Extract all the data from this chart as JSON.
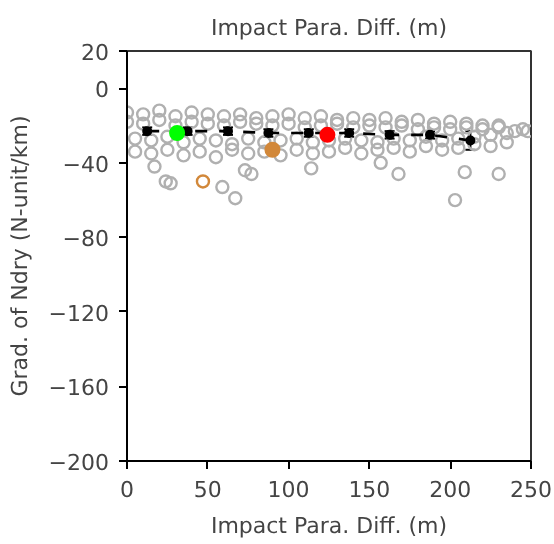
{
  "chart_data": {
    "type": "scatter",
    "title": "Impact Para. Diff. (m)",
    "xlabel": "Impact Para. Diff. (m)",
    "ylabel": "Grad. of Ndry (N-unit/km)",
    "xlim": [
      0,
      250
    ],
    "ylim": [
      -200,
      20
    ],
    "xticks": [
      0,
      50,
      100,
      150,
      200,
      250
    ],
    "yticks": [
      -200,
      -160,
      -120,
      -80,
      -40,
      0,
      20
    ],
    "grid": false,
    "series": [
      {
        "color": "#b0b0b0",
        "marker": "circle_open",
        "x": [
          0,
          10,
          20,
          30,
          40,
          50,
          60,
          70,
          80,
          90,
          100,
          110,
          120,
          130,
          140,
          150,
          160,
          170,
          180,
          190,
          200,
          210,
          220,
          230,
          5,
          15,
          25,
          35,
          45,
          55,
          65,
          75,
          85,
          95,
          105,
          115,
          125,
          135,
          145,
          155,
          165,
          175,
          185,
          195,
          205,
          215,
          225,
          235,
          0,
          10,
          20,
          30,
          40,
          50,
          60,
          70,
          80,
          90,
          100,
          110,
          120,
          130,
          140,
          150,
          160,
          170,
          180,
          190,
          200,
          210,
          220,
          230,
          5,
          15,
          25,
          35,
          45,
          55,
          65,
          75,
          85,
          95,
          105,
          115,
          125,
          135,
          145,
          155,
          165,
          175,
          185,
          195,
          205,
          215,
          225,
          235,
          240,
          245,
          248,
          24,
          59,
          67,
          73,
          77,
          114,
          168,
          203,
          209,
          230,
          17,
          27,
          157
        ],
        "values": [
          -13,
          -14,
          -12,
          -15,
          -13,
          -14,
          -15,
          -14,
          -16,
          -15,
          -14,
          -16,
          -15,
          -17,
          -16,
          -17,
          -16,
          -18,
          -17,
          -19,
          -18,
          -19,
          -20,
          -20,
          -34,
          -35,
          -33,
          -36,
          -34,
          -37,
          -33,
          -35,
          -34,
          -36,
          -33,
          -35,
          -34,
          -32,
          -35,
          -33,
          -32,
          -34,
          -31,
          -33,
          -32,
          -30,
          -31,
          -29,
          -18,
          -19,
          -17,
          -20,
          -18,
          -19,
          -20,
          -18,
          -19,
          -20,
          -19,
          -21,
          -20,
          -19,
          -21,
          -20,
          -21,
          -20,
          -22,
          -21,
          -22,
          -21,
          -22,
          -21,
          -27,
          -28,
          -26,
          -29,
          -27,
          -28,
          -30,
          -27,
          -29,
          -28,
          -27,
          -29,
          -28,
          -27,
          -28,
          -29,
          -27,
          -28,
          -26,
          -28,
          -27,
          -26,
          -25,
          -24,
          -23,
          -22,
          -23,
          -50,
          -53,
          -59,
          -44,
          -46,
          -43,
          -46,
          -60,
          -45,
          -46,
          -42,
          -51,
          -40
        ]
      },
      {
        "color": "#000000",
        "type": "line",
        "line_style": "dashed",
        "marker": "circle",
        "x": [
          12.5,
          37.5,
          62.5,
          87.5,
          112.5,
          137.5,
          162.5,
          187.5,
          212.5
        ],
        "values": [
          -23,
          -23,
          -23,
          -24,
          -24,
          -24,
          -25,
          -25,
          -28
        ],
        "errors": [
          2,
          2,
          2,
          2,
          2,
          2,
          2,
          2,
          5
        ]
      },
      {
        "color": "#00ff00",
        "marker": "circle",
        "x": [
          31
        ],
        "values": [
          -24
        ]
      },
      {
        "color": "#ff0000",
        "marker": "circle",
        "x": [
          124
        ],
        "values": [
          -25
        ]
      },
      {
        "color": "#d2883a",
        "marker": "circle",
        "x": [
          90
        ],
        "values": [
          -33
        ]
      },
      {
        "color": "#d2883a",
        "marker": "circle_open",
        "x": [
          47
        ],
        "values": [
          -50
        ]
      }
    ]
  }
}
